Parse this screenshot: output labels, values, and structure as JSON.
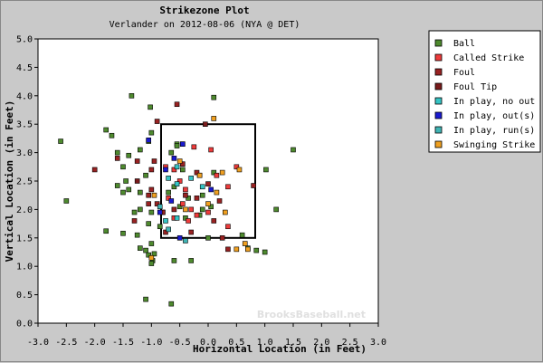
{
  "chart_data": {
    "type": "scatter",
    "title": "Strikezone Plot",
    "subtitle": "Verlander on 2012-08-06 (NYA @ DET)",
    "xlabel": "Horizontal Location (in Feet)",
    "ylabel": "Vertical Location (in Feet)",
    "xlim": [
      -3.0,
      3.0
    ],
    "ylim": [
      0.0,
      5.0
    ],
    "xticks": [
      "-3.0",
      "-2.5",
      "-2.0",
      "-1.5",
      "-1.0",
      "-0.5",
      "0.0",
      "0.5",
      "1.0",
      "1.5",
      "2.0",
      "2.5",
      "3.0"
    ],
    "yticks": [
      "0.0",
      "0.5",
      "1.0",
      "1.5",
      "2.0",
      "2.5",
      "3.0",
      "3.5",
      "4.0",
      "4.5",
      "5.0"
    ],
    "grid": false,
    "legend_position": "right",
    "watermark": "BrooksBaseball.net",
    "strike_zone": {
      "x": [
        -0.83,
        0.83
      ],
      "y": [
        1.5,
        3.5
      ]
    },
    "series": [
      {
        "name": "Ball",
        "color": "#4e8a2e",
        "points": [
          [
            -1.35,
            4.0
          ],
          [
            -1.02,
            3.8
          ],
          [
            0.1,
            3.97
          ],
          [
            -2.6,
            3.2
          ],
          [
            -1.8,
            3.4
          ],
          [
            -1.7,
            3.3
          ],
          [
            -1.6,
            3.0
          ],
          [
            -1.4,
            2.95
          ],
          [
            -1.0,
            3.35
          ],
          [
            -1.05,
            3.2
          ],
          [
            -1.2,
            3.05
          ],
          [
            -1.5,
            2.75
          ],
          [
            -1.45,
            2.5
          ],
          [
            -1.5,
            2.3
          ],
          [
            -1.6,
            2.42
          ],
          [
            -1.4,
            2.35
          ],
          [
            -1.2,
            2.3
          ],
          [
            -1.1,
            2.6
          ],
          [
            -2.5,
            2.15
          ],
          [
            -1.2,
            2.0
          ],
          [
            -1.3,
            1.95
          ],
          [
            -1.0,
            1.95
          ],
          [
            -1.05,
            1.75
          ],
          [
            -1.5,
            1.58
          ],
          [
            -1.8,
            1.62
          ],
          [
            -1.25,
            1.55
          ],
          [
            -1.0,
            1.4
          ],
          [
            -1.1,
            1.28
          ],
          [
            -1.2,
            1.32
          ],
          [
            -1.05,
            1.2
          ],
          [
            -0.95,
            1.22
          ],
          [
            -0.98,
            1.1
          ],
          [
            -1.0,
            1.05
          ],
          [
            -0.6,
            1.1
          ],
          [
            -0.3,
            1.1
          ],
          [
            0.0,
            1.5
          ],
          [
            0.6,
            1.55
          ],
          [
            0.7,
            1.32
          ],
          [
            0.85,
            1.28
          ],
          [
            1.0,
            1.25
          ],
          [
            1.5,
            3.05
          ],
          [
            1.02,
            2.7
          ],
          [
            1.2,
            2.0
          ],
          [
            -1.1,
            0.42
          ],
          [
            -0.65,
            0.34
          ],
          [
            -0.65,
            3.0
          ],
          [
            -0.55,
            3.15
          ],
          [
            -0.55,
            3.12
          ],
          [
            -0.45,
            2.7
          ],
          [
            -0.6,
            2.4
          ],
          [
            -0.35,
            2.2
          ],
          [
            -0.4,
            1.85
          ],
          [
            -0.15,
            1.9
          ],
          [
            -0.1,
            2.0
          ],
          [
            0.05,
            2.05
          ],
          [
            -0.5,
            2.05
          ],
          [
            -0.1,
            2.25
          ],
          [
            0.1,
            2.65
          ],
          [
            -0.85,
            1.7
          ],
          [
            -0.8,
            1.95
          ],
          [
            -0.7,
            2.3
          ]
        ]
      },
      {
        "name": "Called Strike",
        "color": "#ee3b3b",
        "points": [
          [
            -0.75,
            2.75
          ],
          [
            -0.6,
            2.7
          ],
          [
            -0.7,
            2.2
          ],
          [
            -0.5,
            2.5
          ],
          [
            -0.45,
            2.1
          ],
          [
            -0.3,
            2.0
          ],
          [
            -0.2,
            1.9
          ],
          [
            0.0,
            1.95
          ],
          [
            -0.35,
            1.8
          ],
          [
            0.35,
            1.7
          ],
          [
            0.05,
            3.05
          ],
          [
            0.5,
            2.75
          ],
          [
            -0.4,
            2.35
          ],
          [
            -0.6,
            1.85
          ],
          [
            -0.25,
            3.1
          ],
          [
            -0.15,
            2.6
          ],
          [
            0.15,
            2.6
          ],
          [
            0.35,
            2.4
          ]
        ]
      },
      {
        "name": "Foul",
        "color": "#992222",
        "points": [
          [
            -0.9,
            3.55
          ],
          [
            -0.55,
            3.85
          ],
          [
            -0.95,
            2.85
          ],
          [
            -1.0,
            2.7
          ],
          [
            -1.25,
            2.85
          ],
          [
            -1.6,
            2.9
          ],
          [
            -2.0,
            2.7
          ],
          [
            -1.0,
            2.35
          ],
          [
            -1.05,
            2.25
          ],
          [
            -1.05,
            2.1
          ],
          [
            -0.9,
            2.1
          ],
          [
            -0.8,
            1.95
          ],
          [
            -1.3,
            1.8
          ],
          [
            -0.6,
            2.0
          ],
          [
            -0.4,
            2.25
          ],
          [
            -0.2,
            2.2
          ],
          [
            -0.3,
            1.6
          ],
          [
            0.1,
            1.8
          ],
          [
            0.25,
            1.5
          ],
          [
            0.35,
            1.3
          ],
          [
            -0.75,
            1.6
          ],
          [
            -0.2,
            2.65
          ],
          [
            0.0,
            2.45
          ],
          [
            0.2,
            2.15
          ],
          [
            -0.45,
            2.8
          ],
          [
            0.8,
            2.42
          ]
        ]
      },
      {
        "name": "Foul Tip",
        "color": "#7a1b1b",
        "points": [
          [
            -1.25,
            2.5
          ],
          [
            -0.05,
            3.5
          ]
        ]
      },
      {
        "name": "In play, no out",
        "color": "#35c4c4",
        "points": [
          [
            -0.7,
            2.55
          ],
          [
            -0.55,
            2.75
          ],
          [
            -0.45,
            3.15
          ],
          [
            -0.55,
            2.45
          ],
          [
            -0.3,
            2.55
          ],
          [
            -0.55,
            1.85
          ],
          [
            -0.75,
            1.8
          ],
          [
            -0.1,
            2.4
          ]
        ]
      },
      {
        "name": "In play, out(s)",
        "color": "#1a1ad0",
        "points": [
          [
            -1.05,
            3.22
          ],
          [
            -0.45,
            3.15
          ],
          [
            -0.6,
            2.9
          ],
          [
            -0.65,
            2.15
          ],
          [
            -0.85,
            1.95
          ],
          [
            -0.5,
            1.5
          ],
          [
            0.05,
            2.35
          ],
          [
            -0.75,
            2.7
          ]
        ]
      },
      {
        "name": "In play, run(s)",
        "color": "#3fb4b4",
        "points": [
          [
            -0.7,
            1.65
          ],
          [
            -0.4,
            1.45
          ],
          [
            -0.85,
            2.05
          ]
        ]
      },
      {
        "name": "Swinging Strike",
        "color": "#f0a020",
        "points": [
          [
            0.1,
            3.6
          ],
          [
            0.55,
            2.7
          ],
          [
            0.15,
            2.3
          ],
          [
            0.0,
            2.1
          ],
          [
            0.3,
            1.95
          ],
          [
            0.65,
            1.4
          ],
          [
            0.7,
            1.3
          ],
          [
            0.5,
            1.3
          ],
          [
            -0.5,
            2.85
          ],
          [
            -0.4,
            2.0
          ],
          [
            -0.15,
            2.6
          ],
          [
            -0.95,
            2.25
          ],
          [
            -1.0,
            1.15
          ],
          [
            0.25,
            2.65
          ]
        ]
      }
    ]
  }
}
